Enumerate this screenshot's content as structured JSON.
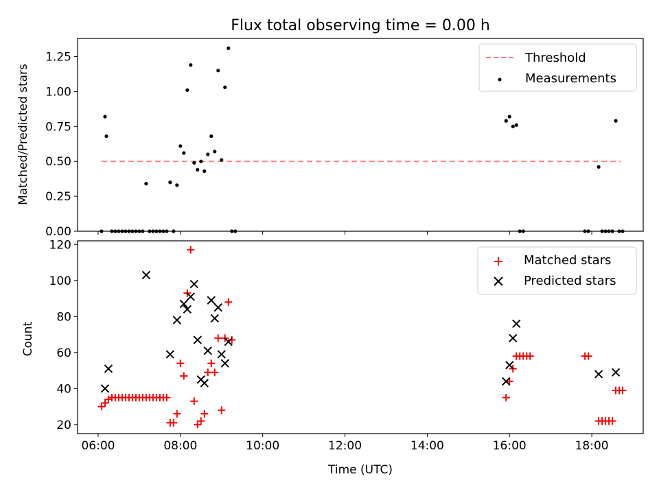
{
  "chart_data": [
    {
      "type": "scatter",
      "title": "Flux total observing time = 0.00 h",
      "xlabel": "",
      "ylabel": "Matched/Predicted stars",
      "xlim": [
        "05:30",
        "19:15"
      ],
      "ylim": [
        0,
        1.38
      ],
      "x_ticks": [
        "06:00",
        "08:00",
        "10:00",
        "12:00",
        "14:00",
        "16:00",
        "18:00"
      ],
      "y_ticks": [
        "0.00",
        "0.25",
        "0.50",
        "0.75",
        "1.00",
        "1.25"
      ],
      "y_tick_values": [
        0,
        0.25,
        0.5,
        0.75,
        1.0,
        1.25
      ],
      "legend_position": "top-right",
      "colors": {
        "threshold": "#ff8080",
        "measurements": "#000000"
      },
      "series": [
        {
          "name": "Threshold",
          "type": "line",
          "style": "dashed",
          "x": [
            "06:05",
            "18:42"
          ],
          "y": [
            0.5,
            0.5
          ]
        },
        {
          "name": "Measurements",
          "type": "scatter",
          "x": [
            "06:05",
            "06:10",
            "06:12",
            "06:20",
            "06:25",
            "06:30",
            "06:35",
            "06:40",
            "06:45",
            "06:50",
            "06:55",
            "07:00",
            "07:05",
            "07:10",
            "07:15",
            "07:20",
            "07:25",
            "07:30",
            "07:35",
            "07:40",
            "07:45",
            "07:50",
            "07:55",
            "08:00",
            "08:05",
            "08:10",
            "08:15",
            "08:20",
            "08:25",
            "08:30",
            "08:35",
            "08:40",
            "08:45",
            "08:50",
            "08:55",
            "09:00",
            "09:05",
            "09:10",
            "09:15",
            "09:20",
            "15:55",
            "16:00",
            "16:05",
            "16:10",
            "16:15",
            "16:20",
            "17:50",
            "17:55",
            "18:10",
            "18:15",
            "18:20",
            "18:25",
            "18:30",
            "18:35",
            "18:40",
            "18:45"
          ],
          "y": [
            0,
            0.82,
            0.68,
            0,
            0,
            0,
            0,
            0,
            0,
            0,
            0,
            0,
            0,
            0.34,
            0,
            0,
            0,
            0,
            0,
            0,
            0.35,
            0,
            0.33,
            0.61,
            0.56,
            1.01,
            1.19,
            0.49,
            0.44,
            0.5,
            0.43,
            0.55,
            0.68,
            0.57,
            1.15,
            0.51,
            1.03,
            1.31,
            0,
            0,
            0.79,
            0.82,
            0.75,
            0.76,
            0,
            0,
            0,
            0,
            0.46,
            0,
            0,
            0,
            0,
            0.79,
            0,
            0
          ]
        }
      ]
    },
    {
      "type": "scatter",
      "title": "",
      "xlabel": "Time (UTC)",
      "ylabel": "Count",
      "xlim": [
        "05:30",
        "19:15"
      ],
      "ylim": [
        15,
        122
      ],
      "x_ticks": [
        "06:00",
        "08:00",
        "10:00",
        "12:00",
        "14:00",
        "16:00",
        "18:00"
      ],
      "y_ticks": [
        "20",
        "40",
        "60",
        "80",
        "100",
        "120"
      ],
      "y_tick_values": [
        20,
        40,
        60,
        80,
        100,
        120
      ],
      "legend_position": "top-right",
      "colors": {
        "matched": "#ff0000",
        "predicted": "#000000"
      },
      "series": [
        {
          "name": "Matched stars",
          "marker": "plus",
          "x": [
            "06:05",
            "06:10",
            "06:15",
            "06:20",
            "06:25",
            "06:30",
            "06:35",
            "06:40",
            "06:45",
            "06:50",
            "06:55",
            "07:00",
            "07:05",
            "07:10",
            "07:15",
            "07:20",
            "07:25",
            "07:30",
            "07:35",
            "07:40",
            "07:45",
            "07:50",
            "07:55",
            "08:00",
            "08:05",
            "08:10",
            "08:15",
            "08:20",
            "08:25",
            "08:30",
            "08:35",
            "08:40",
            "08:45",
            "08:50",
            "08:55",
            "09:00",
            "09:05",
            "09:10",
            "09:15",
            "15:55",
            "16:00",
            "16:05",
            "16:10",
            "16:15",
            "16:20",
            "16:25",
            "16:30",
            "17:50",
            "17:55",
            "18:10",
            "18:15",
            "18:20",
            "18:25",
            "18:30",
            "18:35",
            "18:40",
            "18:45"
          ],
          "y": [
            30,
            32,
            34,
            35,
            35,
            35,
            35,
            35,
            35,
            35,
            35,
            35,
            35,
            35,
            35,
            35,
            35,
            35,
            35,
            35,
            21,
            21,
            26,
            54,
            47,
            93,
            117,
            33,
            20,
            22,
            26,
            49,
            54,
            49,
            68,
            28,
            68,
            88,
            67,
            35,
            44,
            51,
            58,
            58,
            58,
            58,
            58,
            58,
            58,
            22,
            22,
            22,
            22,
            22,
            39,
            39,
            39
          ]
        },
        {
          "name": "Predicted stars",
          "marker": "x",
          "x": [
            "06:10",
            "06:15",
            "07:10",
            "07:45",
            "07:55",
            "08:05",
            "08:10",
            "08:15",
            "08:20",
            "08:25",
            "08:30",
            "08:35",
            "08:40",
            "08:45",
            "08:50",
            "08:55",
            "09:00",
            "09:05",
            "09:10",
            "15:55",
            "16:00",
            "16:05",
            "16:10",
            "18:10",
            "18:35"
          ],
          "y": [
            40,
            51,
            103,
            59,
            78,
            87,
            84,
            91,
            98,
            67,
            45,
            43,
            61,
            89,
            79,
            85,
            59,
            54,
            66,
            44,
            53,
            68,
            76,
            48,
            49
          ]
        }
      ]
    }
  ]
}
